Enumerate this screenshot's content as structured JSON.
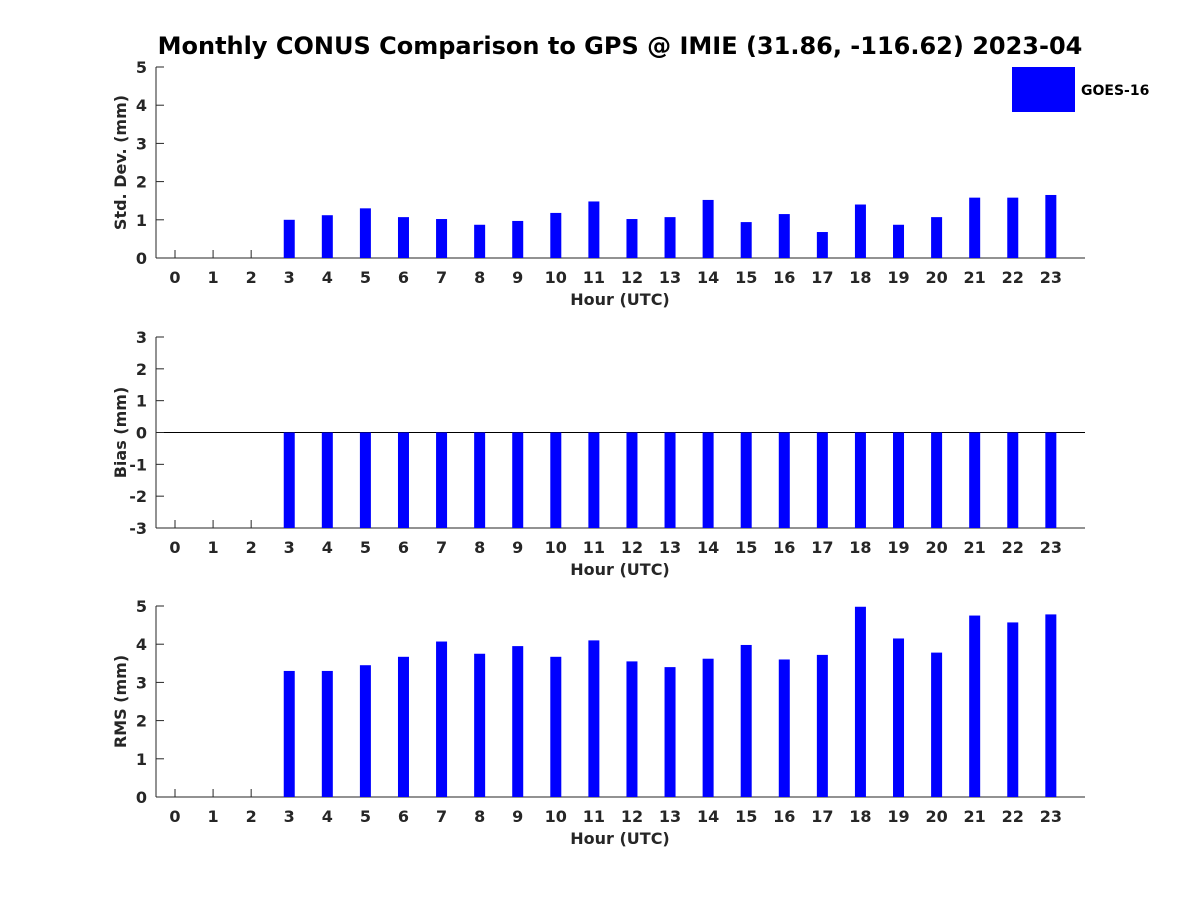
{
  "chart_data": {
    "title": "Monthly CONUS Comparison to GPS @ IMIE (31.86, -116.62) 2023-04",
    "legend": {
      "labels": [
        "GOES-16"
      ],
      "color": "#0000ff",
      "placement": "top-right"
    },
    "panels": [
      {
        "type": "bar",
        "ylabel": "Std. Dev. (mm)",
        "xlabel": "Hour (UTC)",
        "ylim": [
          0,
          5
        ],
        "yticks": [
          "0",
          "1",
          "2",
          "3",
          "4",
          "5"
        ],
        "categories": [
          "0",
          "1",
          "2",
          "3",
          "4",
          "5",
          "6",
          "7",
          "8",
          "9",
          "10",
          "11",
          "12",
          "13",
          "14",
          "15",
          "16",
          "17",
          "18",
          "19",
          "20",
          "21",
          "22",
          "23"
        ],
        "series": [
          {
            "name": "GOES-16",
            "values": [
              null,
              null,
              null,
              1.0,
              1.12,
              1.3,
              1.07,
              1.02,
              0.87,
              0.97,
              1.18,
              1.48,
              1.02,
              1.07,
              1.52,
              0.94,
              1.15,
              0.68,
              1.4,
              0.87,
              1.07,
              1.58,
              1.58,
              1.65
            ]
          }
        ]
      },
      {
        "type": "bar",
        "ylabel": "Bias (mm)",
        "xlabel": "Hour (UTC)",
        "ylim": [
          -3,
          3
        ],
        "yticks": [
          "-3",
          "-2",
          "-1",
          "0",
          "1",
          "2",
          "3"
        ],
        "categories": [
          "0",
          "1",
          "2",
          "3",
          "4",
          "5",
          "6",
          "7",
          "8",
          "9",
          "10",
          "11",
          "12",
          "13",
          "14",
          "15",
          "16",
          "17",
          "18",
          "19",
          "20",
          "21",
          "22",
          "23"
        ],
        "series": [
          {
            "name": "GOES-16",
            "values": [
              null,
              null,
              null,
              -3.0,
              -3.0,
              -3.0,
              -3.0,
              -3.0,
              -3.0,
              -3.0,
              -3.0,
              -3.0,
              -3.0,
              -3.0,
              -3.0,
              -3.0,
              -3.0,
              -3.0,
              -3.0,
              -3.0,
              -3.0,
              -3.0,
              -3.0,
              -3.0
            ]
          }
        ]
      },
      {
        "type": "bar",
        "ylabel": "RMS (mm)",
        "xlabel": "Hour (UTC)",
        "ylim": [
          0,
          5
        ],
        "yticks": [
          "0",
          "1",
          "2",
          "3",
          "4",
          "5"
        ],
        "categories": [
          "0",
          "1",
          "2",
          "3",
          "4",
          "5",
          "6",
          "7",
          "8",
          "9",
          "10",
          "11",
          "12",
          "13",
          "14",
          "15",
          "16",
          "17",
          "18",
          "19",
          "20",
          "21",
          "22",
          "23"
        ],
        "series": [
          {
            "name": "GOES-16",
            "values": [
              null,
              null,
              null,
              3.3,
              3.3,
              3.45,
              3.67,
              4.07,
              3.75,
              3.95,
              3.67,
              4.1,
              3.55,
              3.4,
              3.62,
              3.98,
              3.6,
              3.72,
              4.98,
              4.15,
              3.78,
              4.75,
              4.57,
              4.78
            ]
          }
        ]
      }
    ]
  }
}
